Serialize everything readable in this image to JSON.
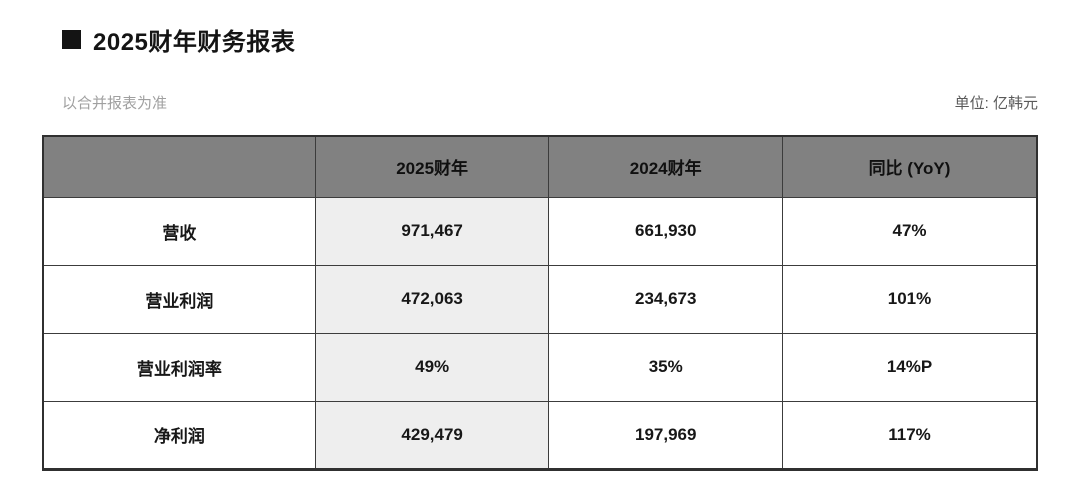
{
  "page": {
    "title": "2025财年财务报表",
    "note_left": "以合并报表为准",
    "unit_label": "单位: 亿韩元"
  },
  "table": {
    "columns": [
      "",
      "2025财年",
      "2024财年",
      "同比 (YoY)"
    ],
    "rows": [
      {
        "label": "营收",
        "fy2025": "971,467",
        "fy2024": "661,930",
        "yoy": "47%"
      },
      {
        "label": "营业利润",
        "fy2025": "472,063",
        "fy2024": "234,673",
        "yoy": "101%"
      },
      {
        "label": "营业利润率",
        "fy2025": "49%",
        "fy2024": "35%",
        "yoy": "14%P"
      },
      {
        "label": "净利润",
        "fy2025": "429,479",
        "fy2024": "197,969",
        "yoy": "117%"
      }
    ]
  },
  "colors": {
    "header_background": "#818181",
    "highlight_column_background": "#eeeeee",
    "border": "#3c3c3c",
    "title_text": "#141414",
    "note_text": "#a0a0a0",
    "unit_text": "#5a5a5a"
  }
}
